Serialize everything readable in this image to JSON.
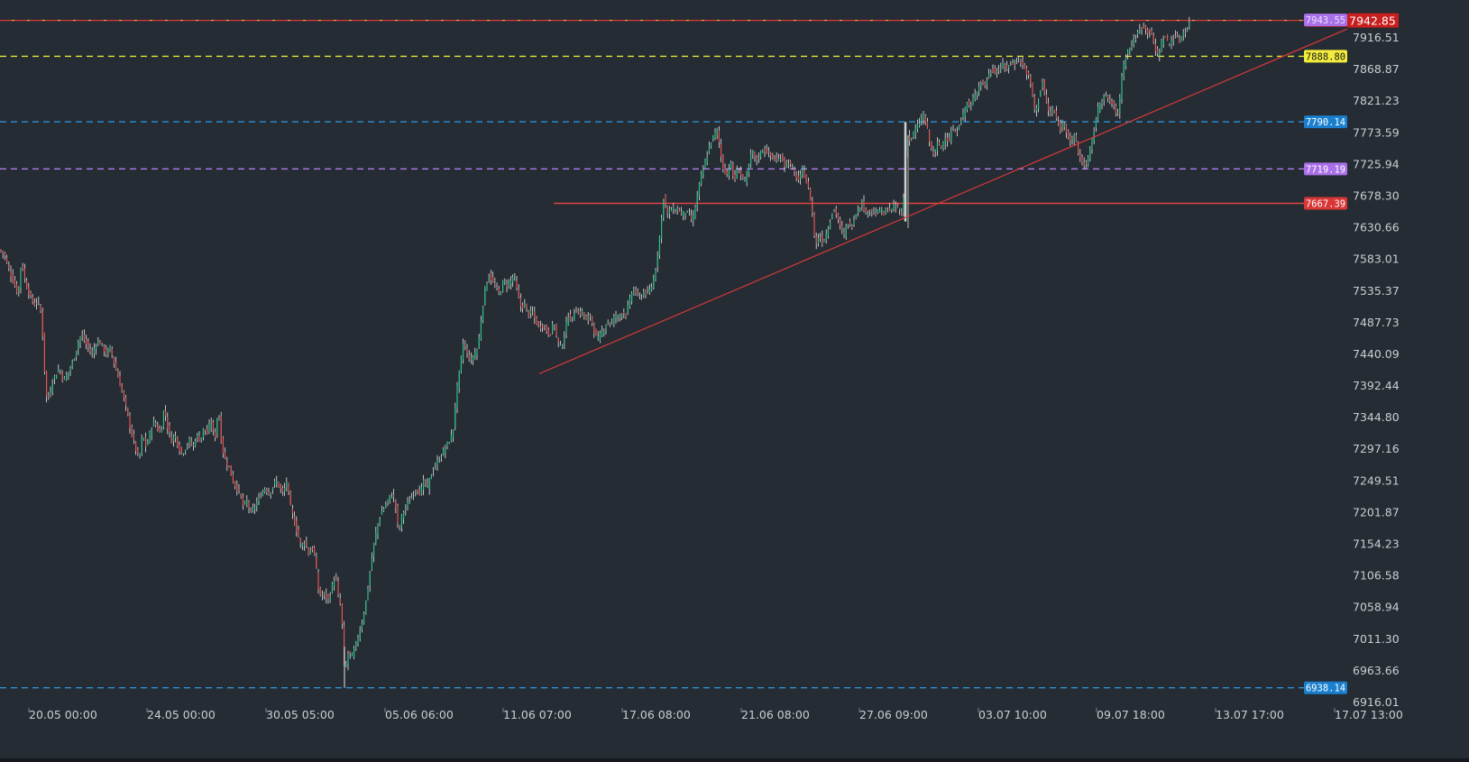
{
  "chart_data": {
    "type": "candlestick",
    "symbol_context": "intraday price chart",
    "y_range": [
      6916.01,
      7960
    ],
    "y_ticks": [
      "7916.51",
      "7868.87",
      "7821.23",
      "7773.59",
      "7725.94",
      "7678.30",
      "7630.66",
      "7583.01",
      "7535.37",
      "7487.73",
      "7440.09",
      "7392.44",
      "7344.80",
      "7297.16",
      "7249.51",
      "7201.87",
      "7154.23",
      "7106.58",
      "7058.94",
      "7011.30",
      "6963.66",
      "6916.01"
    ],
    "x_ticks": [
      "20.05 00:00",
      "24.05 00:00",
      "30.05 05:00",
      "05.06 06:00",
      "11.06 07:00",
      "17.06 08:00",
      "21.06 08:00",
      "27.06 09:00",
      "03.07 10:00",
      "09.07 18:00",
      "13.07 17:00",
      "17.07 13:00"
    ],
    "price_path": [
      [
        0,
        7597
      ],
      [
        5,
        7590
      ],
      [
        8,
        7575
      ],
      [
        12,
        7560
      ],
      [
        16,
        7545
      ],
      [
        20,
        7530
      ],
      [
        24,
        7585
      ],
      [
        26,
        7560
      ],
      [
        30,
        7540
      ],
      [
        34,
        7525
      ],
      [
        38,
        7515
      ],
      [
        42,
        7520
      ],
      [
        46,
        7500
      ],
      [
        48,
        7450
      ],
      [
        50,
        7400
      ],
      [
        52,
        7370
      ],
      [
        55,
        7380
      ],
      [
        58,
        7400
      ],
      [
        62,
        7410
      ],
      [
        66,
        7420
      ],
      [
        70,
        7400
      ],
      [
        74,
        7410
      ],
      [
        78,
        7420
      ],
      [
        82,
        7435
      ],
      [
        86,
        7455
      ],
      [
        90,
        7470
      ],
      [
        94,
        7460
      ],
      [
        98,
        7450
      ],
      [
        102,
        7440
      ],
      [
        106,
        7455
      ],
      [
        110,
        7460
      ],
      [
        114,
        7450
      ],
      [
        118,
        7440
      ],
      [
        122,
        7450
      ],
      [
        126,
        7430
      ],
      [
        130,
        7410
      ],
      [
        134,
        7390
      ],
      [
        138,
        7370
      ],
      [
        142,
        7345
      ],
      [
        146,
        7320
      ],
      [
        150,
        7300
      ],
      [
        154,
        7280
      ],
      [
        158,
        7320
      ],
      [
        162,
        7300
      ],
      [
        166,
        7320
      ],
      [
        170,
        7340
      ],
      [
        174,
        7330
      ],
      [
        178,
        7320
      ],
      [
        182,
        7360
      ],
      [
        186,
        7330
      ],
      [
        190,
        7310
      ],
      [
        194,
        7320
      ],
      [
        198,
        7300
      ],
      [
        202,
        7290
      ],
      [
        206,
        7300
      ],
      [
        210,
        7310
      ],
      [
        214,
        7300
      ],
      [
        218,
        7320
      ],
      [
        222,
        7310
      ],
      [
        226,
        7330
      ],
      [
        230,
        7320
      ],
      [
        234,
        7340
      ],
      [
        238,
        7310
      ],
      [
        242,
        7360
      ],
      [
        246,
        7300
      ],
      [
        250,
        7280
      ],
      [
        254,
        7270
      ],
      [
        258,
        7250
      ],
      [
        262,
        7240
      ],
      [
        266,
        7230
      ],
      [
        270,
        7210
      ],
      [
        274,
        7220
      ],
      [
        278,
        7200
      ],
      [
        282,
        7210
      ],
      [
        286,
        7220
      ],
      [
        290,
        7230
      ],
      [
        294,
        7240
      ],
      [
        298,
        7230
      ],
      [
        302,
        7240
      ],
      [
        306,
        7250
      ],
      [
        310,
        7240
      ],
      [
        314,
        7230
      ],
      [
        318,
        7250
      ],
      [
        322,
        7210
      ],
      [
        326,
        7190
      ],
      [
        330,
        7170
      ],
      [
        334,
        7150
      ],
      [
        338,
        7160
      ],
      [
        342,
        7140
      ],
      [
        346,
        7150
      ],
      [
        350,
        7130
      ],
      [
        352,
        7090
      ],
      [
        356,
        7075
      ],
      [
        360,
        7080
      ],
      [
        364,
        7070
      ],
      [
        368,
        7090
      ],
      [
        372,
        7110
      ],
      [
        374,
        7080
      ],
      [
        378,
        7060
      ],
      [
        380,
        7020
      ],
      [
        382,
        6960
      ],
      [
        386,
        6990
      ],
      [
        390,
        6985
      ],
      [
        394,
        7000
      ],
      [
        398,
        7020
      ],
      [
        402,
        7040
      ],
      [
        406,
        7070
      ],
      [
        410,
        7110
      ],
      [
        414,
        7150
      ],
      [
        418,
        7180
      ],
      [
        422,
        7200
      ],
      [
        426,
        7210
      ],
      [
        430,
        7220
      ],
      [
        434,
        7230
      ],
      [
        438,
        7220
      ],
      [
        442,
        7170
      ],
      [
        446,
        7200
      ],
      [
        450,
        7210
      ],
      [
        454,
        7220
      ],
      [
        458,
        7230
      ],
      [
        462,
        7240
      ],
      [
        466,
        7230
      ],
      [
        470,
        7250
      ],
      [
        474,
        7240
      ],
      [
        478,
        7260
      ],
      [
        482,
        7270
      ],
      [
        486,
        7280
      ],
      [
        490,
        7290
      ],
      [
        494,
        7300
      ],
      [
        498,
        7310
      ],
      [
        502,
        7320
      ],
      [
        506,
        7380
      ],
      [
        510,
        7420
      ],
      [
        514,
        7460
      ],
      [
        518,
        7440
      ],
      [
        522,
        7430
      ],
      [
        526,
        7440
      ],
      [
        530,
        7450
      ],
      [
        534,
        7500
      ],
      [
        538,
        7540
      ],
      [
        542,
        7560
      ],
      [
        546,
        7550
      ],
      [
        550,
        7540
      ],
      [
        554,
        7530
      ],
      [
        558,
        7550
      ],
      [
        562,
        7545
      ],
      [
        566,
        7550
      ],
      [
        570,
        7560
      ],
      [
        574,
        7530
      ],
      [
        578,
        7510
      ],
      [
        582,
        7515
      ],
      [
        586,
        7500
      ],
      [
        590,
        7505
      ],
      [
        594,
        7490
      ],
      [
        598,
        7480
      ],
      [
        602,
        7485
      ],
      [
        606,
        7475
      ],
      [
        610,
        7470
      ],
      [
        614,
        7490
      ],
      [
        618,
        7460
      ],
      [
        622,
        7450
      ],
      [
        626,
        7470
      ],
      [
        630,
        7500
      ],
      [
        634,
        7490
      ],
      [
        638,
        7510
      ],
      [
        642,
        7500
      ],
      [
        646,
        7505
      ],
      [
        650,
        7490
      ],
      [
        654,
        7500
      ],
      [
        658,
        7480
      ],
      [
        662,
        7460
      ],
      [
        666,
        7470
      ],
      [
        670,
        7480
      ],
      [
        674,
        7490
      ],
      [
        678,
        7485
      ],
      [
        682,
        7500
      ],
      [
        686,
        7495
      ],
      [
        690,
        7505
      ],
      [
        694,
        7500
      ],
      [
        698,
        7520
      ],
      [
        702,
        7540
      ],
      [
        706,
        7530
      ],
      [
        710,
        7525
      ],
      [
        714,
        7535
      ],
      [
        718,
        7530
      ],
      [
        722,
        7540
      ],
      [
        726,
        7560
      ],
      [
        730,
        7600
      ],
      [
        734,
        7650
      ],
      [
        736,
        7680
      ],
      [
        740,
        7650
      ],
      [
        744,
        7660
      ],
      [
        748,
        7655
      ],
      [
        752,
        7660
      ],
      [
        756,
        7650
      ],
      [
        760,
        7655
      ],
      [
        764,
        7650
      ],
      [
        768,
        7640
      ],
      [
        772,
        7670
      ],
      [
        776,
        7700
      ],
      [
        780,
        7720
      ],
      [
        784,
        7740
      ],
      [
        788,
        7760
      ],
      [
        792,
        7770
      ],
      [
        796,
        7780
      ],
      [
        798,
        7750
      ],
      [
        802,
        7720
      ],
      [
        806,
        7710
      ],
      [
        810,
        7730
      ],
      [
        814,
        7700
      ],
      [
        818,
        7720
      ],
      [
        822,
        7710
      ],
      [
        826,
        7700
      ],
      [
        830,
        7720
      ],
      [
        834,
        7750
      ],
      [
        838,
        7730
      ],
      [
        842,
        7740
      ],
      [
        846,
        7750
      ],
      [
        850,
        7745
      ],
      [
        854,
        7740
      ],
      [
        858,
        7735
      ],
      [
        862,
        7730
      ],
      [
        866,
        7740
      ],
      [
        870,
        7725
      ],
      [
        874,
        7730
      ],
      [
        878,
        7720
      ],
      [
        882,
        7710
      ],
      [
        886,
        7700
      ],
      [
        890,
        7720
      ],
      [
        894,
        7700
      ],
      [
        898,
        7680
      ],
      [
        902,
        7640
      ],
      [
        904,
        7600
      ],
      [
        908,
        7620
      ],
      [
        912,
        7610
      ],
      [
        916,
        7620
      ],
      [
        920,
        7640
      ],
      [
        924,
        7660
      ],
      [
        928,
        7650
      ],
      [
        932,
        7630
      ],
      [
        936,
        7620
      ],
      [
        940,
        7640
      ],
      [
        944,
        7630
      ],
      [
        948,
        7650
      ],
      [
        952,
        7660
      ],
      [
        956,
        7670
      ],
      [
        960,
        7650
      ],
      [
        964,
        7660
      ],
      [
        968,
        7655
      ],
      [
        972,
        7650
      ],
      [
        976,
        7660
      ],
      [
        980,
        7650
      ],
      [
        984,
        7660
      ],
      [
        988,
        7655
      ],
      [
        992,
        7665
      ],
      [
        996,
        7660
      ],
      [
        1000,
        7650
      ],
      [
        1003,
        7690
      ],
      [
        1005,
        7780
      ],
      [
        1008,
        7760
      ],
      [
        1012,
        7770
      ],
      [
        1016,
        7780
      ],
      [
        1020,
        7790
      ],
      [
        1024,
        7800
      ],
      [
        1028,
        7780
      ],
      [
        1032,
        7750
      ],
      [
        1036,
        7740
      ],
      [
        1040,
        7760
      ],
      [
        1044,
        7750
      ],
      [
        1048,
        7770
      ],
      [
        1052,
        7760
      ],
      [
        1056,
        7780
      ],
      [
        1060,
        7770
      ],
      [
        1064,
        7790
      ],
      [
        1068,
        7800
      ],
      [
        1072,
        7820
      ],
      [
        1076,
        7810
      ],
      [
        1080,
        7830
      ],
      [
        1084,
        7840
      ],
      [
        1088,
        7850
      ],
      [
        1092,
        7845
      ],
      [
        1096,
        7860
      ],
      [
        1100,
        7870
      ],
      [
        1104,
        7865
      ],
      [
        1108,
        7870
      ],
      [
        1112,
        7875
      ],
      [
        1116,
        7870
      ],
      [
        1120,
        7880
      ],
      [
        1124,
        7875
      ],
      [
        1128,
        7885
      ],
      [
        1132,
        7880
      ],
      [
        1136,
        7870
      ],
      [
        1140,
        7860
      ],
      [
        1144,
        7840
      ],
      [
        1148,
        7800
      ],
      [
        1152,
        7830
      ],
      [
        1156,
        7850
      ],
      [
        1160,
        7820
      ],
      [
        1164,
        7800
      ],
      [
        1168,
        7810
      ],
      [
        1172,
        7790
      ],
      [
        1176,
        7780
      ],
      [
        1180,
        7790
      ],
      [
        1184,
        7770
      ],
      [
        1188,
        7760
      ],
      [
        1192,
        7770
      ],
      [
        1196,
        7740
      ],
      [
        1200,
        7730
      ],
      [
        1204,
        7725
      ],
      [
        1208,
        7740
      ],
      [
        1212,
        7770
      ],
      [
        1216,
        7800
      ],
      [
        1220,
        7820
      ],
      [
        1224,
        7830
      ],
      [
        1228,
        7825
      ],
      [
        1232,
        7820
      ],
      [
        1236,
        7810
      ],
      [
        1240,
        7800
      ],
      [
        1244,
        7860
      ],
      [
        1248,
        7890
      ],
      [
        1252,
        7900
      ],
      [
        1256,
        7910
      ],
      [
        1260,
        7920
      ],
      [
        1264,
        7930
      ],
      [
        1268,
        7935
      ],
      [
        1272,
        7925
      ],
      [
        1276,
        7930
      ],
      [
        1280,
        7900
      ],
      [
        1284,
        7890
      ],
      [
        1288,
        7910
      ],
      [
        1292,
        7920
      ],
      [
        1296,
        7905
      ],
      [
        1300,
        7915
      ],
      [
        1304,
        7920
      ],
      [
        1308,
        7912
      ],
      [
        1312,
        7925
      ],
      [
        1316,
        7930
      ],
      [
        1320,
        7942
      ]
    ]
  },
  "levels": [
    {
      "name": "resistance-level-7942",
      "price": 7942.85,
      "label": "7942.85",
      "color": "#d63a3a",
      "style": "dashed-mixed",
      "badge_bg": "#c81e1e",
      "badge_fg": "#ffffff"
    },
    {
      "name": "level-7943-purple",
      "price": 7943.55,
      "label": "7943.55",
      "color": "#b07cf0",
      "style": "none",
      "badge_bg": "#a970e8",
      "badge_fg": "#e8e0ff"
    },
    {
      "name": "level-7888",
      "price": 7888.8,
      "label": "7888.80",
      "color": "#e4e43a",
      "style": "dashed",
      "badge_bg": "#f2ec3c",
      "badge_fg": "#1a1a1a"
    },
    {
      "name": "level-7790",
      "price": 7790.14,
      "label": "7790.14",
      "color": "#2d8fd6",
      "style": "dashed",
      "badge_bg": "#1a7fce",
      "badge_fg": "#ffffff"
    },
    {
      "name": "level-7719",
      "price": 7719.19,
      "label": "7719.19",
      "color": "#b07cf0",
      "style": "dashed",
      "badge_bg": "#a970e8",
      "badge_fg": "#ffffff"
    },
    {
      "name": "level-7667",
      "price": 7667.39,
      "label": "7667.39",
      "color": "#e04444",
      "style": "solid",
      "badge_bg": "#d93636",
      "badge_fg": "#ffffff"
    },
    {
      "name": "level-6938",
      "price": 6938.14,
      "label": "6938.14",
      "color": "#2d8fd6",
      "style": "dashed",
      "badge_bg": "#1a7fce",
      "badge_fg": "#ffffff"
    }
  ],
  "current_price": {
    "label": "7942.85",
    "bg": "#c81e1e",
    "fg": "#ffffff"
  },
  "trendline": {
    "color": "#d9393a"
  },
  "colors": {
    "background": "#252c33",
    "up": "#2fbf8a",
    "down": "#e25555",
    "wick": "#e6e6e6",
    "axis_text": "#c9ced3"
  }
}
